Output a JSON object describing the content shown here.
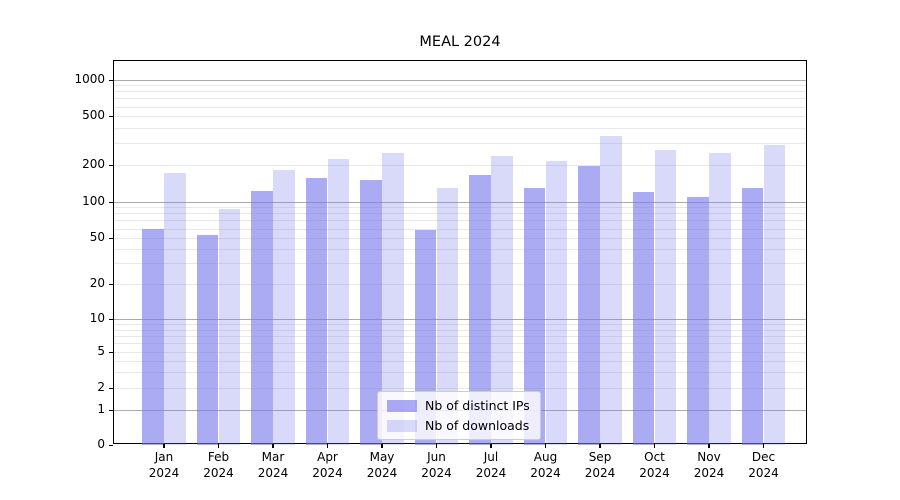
{
  "title": "MEAL 2024",
  "chart_data": {
    "type": "bar",
    "title": "MEAL 2024",
    "xlabel": "",
    "ylabel": "",
    "categories": [
      "Jan 2024",
      "Feb 2024",
      "Mar 2024",
      "Apr 2024",
      "May 2024",
      "Jun 2024",
      "Jul 2024",
      "Aug 2024",
      "Sep 2024",
      "Oct 2024",
      "Nov 2024",
      "Dec 2024"
    ],
    "series": [
      {
        "name": "Nb of distinct IPs",
        "values": [
          60,
          53,
          121,
          157,
          150,
          58,
          165,
          130,
          196,
          119,
          108,
          130
        ]
      },
      {
        "name": "Nb of downloads",
        "values": [
          170,
          86,
          182,
          222,
          252,
          130,
          237,
          215,
          345,
          262,
          248,
          292
        ]
      }
    ],
    "yscale": "symlog",
    "yticks": [
      0,
      1,
      2,
      5,
      10,
      20,
      50,
      100,
      200,
      500,
      1000
    ],
    "ylim": [
      0,
      1420
    ],
    "grid": "on",
    "legend_position": "lower center"
  },
  "legend": {
    "items": [
      {
        "label": "Nb of distinct IPs",
        "color": "rgba(119,119,238,0.62)"
      },
      {
        "label": "Nb of downloads",
        "color": "rgba(119,119,238,0.28)"
      }
    ]
  },
  "colors": {
    "bar_dark": "rgba(119,119,238,0.62)",
    "bar_light": "rgba(119,119,238,0.28)",
    "grid_major": "#ababab",
    "grid_minor": "#e8e8e8",
    "axis": "#000000",
    "background": "#ffffff"
  }
}
